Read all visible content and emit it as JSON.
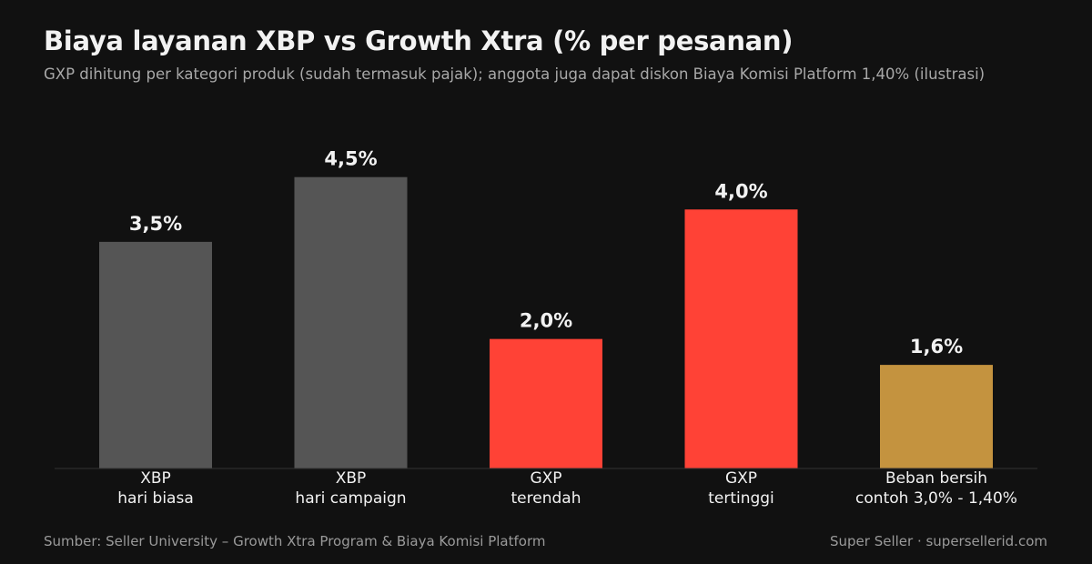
{
  "header": {
    "title": "Biaya layanan XBP vs Growth Xtra (% per pesanan)",
    "subtitle": "GXP dihitung per kategori produk (sudah termasuk pajak); anggota juga dapat diskon Biaya Komisi Platform 1,40% (ilustrasi)"
  },
  "footer": {
    "source": "Sumber: Seller University – Growth Xtra Program & Biaya Komisi Platform",
    "brand": "Super Seller · supersellerid.com"
  },
  "chart_data": {
    "type": "bar",
    "categories": [
      [
        "XBP",
        "hari biasa"
      ],
      [
        "XBP",
        "hari campaign"
      ],
      [
        "GXP",
        "terendah"
      ],
      [
        "GXP",
        "tertinggi"
      ],
      [
        "Beban bersih",
        "contoh 3,0% - 1,40%"
      ]
    ],
    "values": [
      3.5,
      4.5,
      2.0,
      4.0,
      1.6
    ],
    "value_labels": [
      "3,5%",
      "4,5%",
      "2,0%",
      "4,0%",
      "1,6%"
    ],
    "colors": [
      "#555555",
      "#555555",
      "#ff4236",
      "#ff4236",
      "#c4933f"
    ],
    "ylim": [
      0,
      5.5
    ],
    "grid": false,
    "legend": "none",
    "axis_color": "#333333"
  }
}
